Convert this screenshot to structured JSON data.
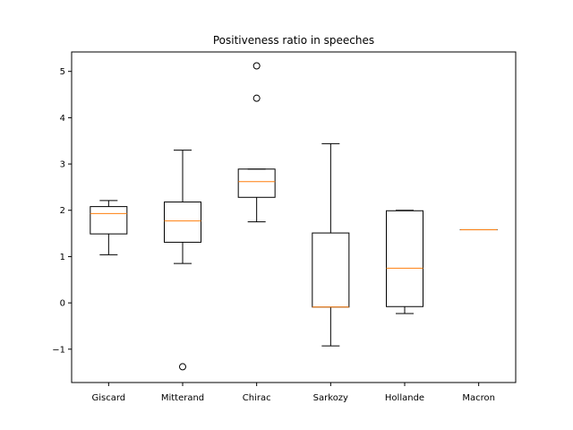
{
  "chart_data": {
    "type": "box",
    "title": "Positiveness ratio in speeches",
    "xlabel": "",
    "ylabel": "",
    "ylim": [
      -1.72,
      5.42
    ],
    "yticks": [
      -1,
      0,
      1,
      2,
      3,
      4,
      5
    ],
    "ytick_labels": [
      "−1",
      "0",
      "1",
      "2",
      "3",
      "4",
      "5"
    ],
    "grid": false,
    "categories": [
      "Giscard",
      "Mitterand",
      "Chirac",
      "Sarkozy",
      "Hollande",
      "Macron"
    ],
    "boxes": [
      {
        "label": "Giscard",
        "whisker_low": 1.04,
        "q1": 1.49,
        "median": 1.93,
        "q3": 2.08,
        "whisker_high": 2.21,
        "outliers": []
      },
      {
        "label": "Mitterand",
        "whisker_low": 0.85,
        "q1": 1.31,
        "median": 1.77,
        "q3": 2.18,
        "whisker_high": 3.3,
        "outliers": [
          -1.38
        ]
      },
      {
        "label": "Chirac",
        "whisker_low": 1.75,
        "q1": 2.28,
        "median": 2.62,
        "q3": 2.89,
        "whisker_high": 2.89,
        "outliers": [
          4.42,
          5.12
        ]
      },
      {
        "label": "Sarkozy",
        "whisker_low": -0.93,
        "q1": -0.09,
        "median": -0.09,
        "q3": 1.51,
        "whisker_high": 3.44,
        "outliers": []
      },
      {
        "label": "Hollande",
        "whisker_low": -0.23,
        "q1": -0.08,
        "median": 0.75,
        "q3": 1.99,
        "whisker_high": 2.0,
        "outliers": []
      },
      {
        "label": "Macron",
        "whisker_low": 1.58,
        "q1": 1.58,
        "median": 1.58,
        "q3": 1.58,
        "whisker_high": 1.58,
        "outliers": []
      }
    ],
    "colors": {
      "box": "#000000",
      "median": "#ff7f0e",
      "background": "#ffffff"
    }
  }
}
